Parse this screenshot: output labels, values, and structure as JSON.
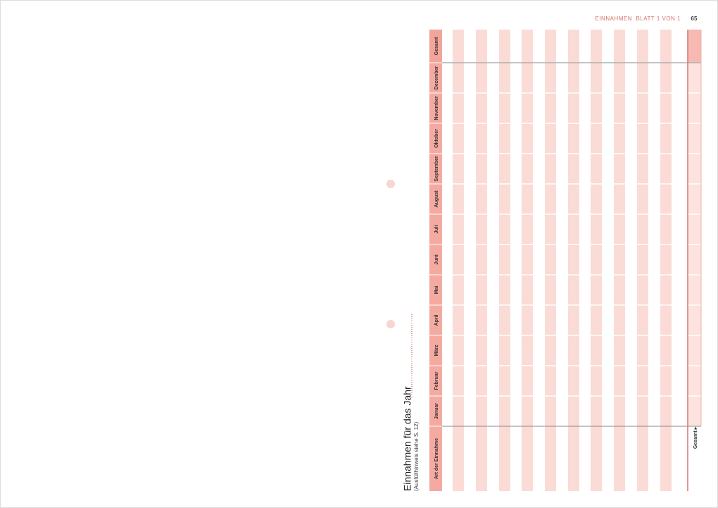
{
  "header": {
    "section": "EINNAHMEN",
    "sheet": "BLATT 1 VON 1",
    "page": "65"
  },
  "form": {
    "title": "Einnahmen für das Jahr",
    "hint": "(Ausfüllhinweis siehe S. 12)",
    "columns": [
      "Art der Einnahme",
      "Januar",
      "Februar",
      "März",
      "April",
      "Mai",
      "Juni",
      "Juli",
      "August",
      "September",
      "Oktober",
      "November",
      "Dezember",
      "Gesamt"
    ],
    "total_label": "Gesamt ▸"
  }
}
